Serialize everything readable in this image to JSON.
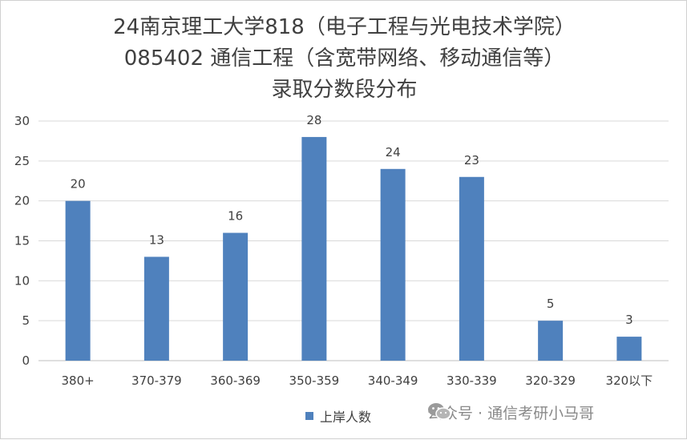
{
  "chart_data": {
    "type": "bar",
    "title": [
      "24南京理工大学818（电子工程与光电技术学院）",
      "085402 通信工程（含宽带网络、移动通信等）",
      "录取分数段分布"
    ],
    "categories": [
      "380+",
      "370-379",
      "360-369",
      "350-359",
      "340-349",
      "330-339",
      "320-329",
      "320以下"
    ],
    "series": [
      {
        "name": "上岸人数",
        "values": [
          20,
          13,
          16,
          28,
          24,
          23,
          5,
          3
        ],
        "color": "#4f81bd"
      }
    ],
    "ylim": [
      0,
      30
    ],
    "yticks": [
      0,
      5,
      10,
      15,
      20,
      25,
      30
    ],
    "grid": true,
    "legend_position": "bottom"
  },
  "watermark": {
    "text": "公众号 · 通信考研小马哥",
    "icon": "wechat-icon"
  }
}
